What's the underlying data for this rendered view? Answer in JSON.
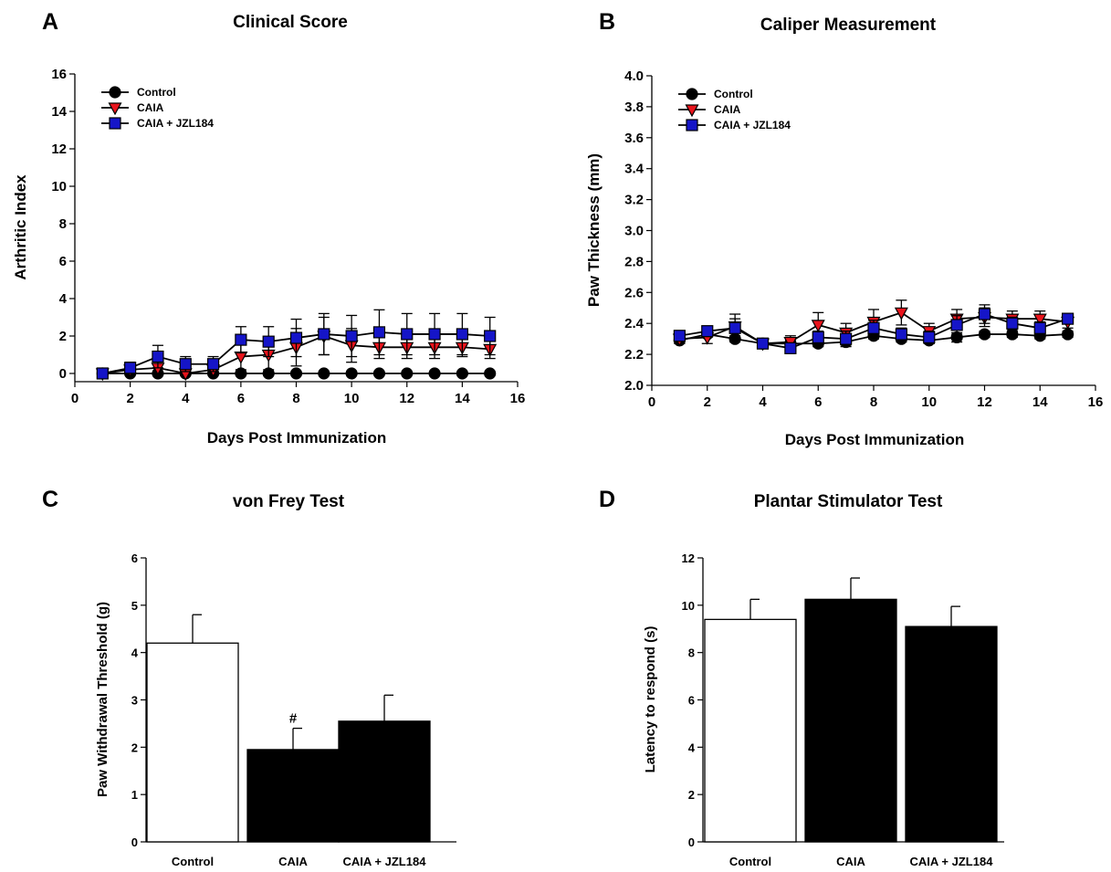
{
  "chart_data": [
    {
      "panel": "A",
      "type": "line",
      "title": "Clinical Score",
      "xlabel": "Days Post Immunization",
      "ylabel": "Arthritic Index",
      "xlim": [
        0,
        16
      ],
      "ylim": [
        0,
        16
      ],
      "xticks": [
        0,
        2,
        4,
        6,
        8,
        10,
        12,
        14,
        16
      ],
      "yticks": [
        0,
        2,
        4,
        6,
        8,
        10,
        12,
        14,
        16
      ],
      "grid": false,
      "legend_position": "top-left",
      "x": [
        1,
        2,
        3,
        4,
        5,
        6,
        7,
        8,
        9,
        10,
        11,
        12,
        13,
        14,
        15
      ],
      "series": [
        {
          "name": "Control",
          "marker": "circle",
          "color": "#000000",
          "values": [
            0,
            0,
            0,
            0,
            0,
            0,
            0,
            0,
            0,
            0,
            0,
            0,
            0,
            0,
            0
          ],
          "error": [
            0,
            0,
            0,
            0,
            0,
            0,
            0,
            0,
            0,
            0,
            0,
            0,
            0,
            0,
            0
          ]
        },
        {
          "name": "CAIA",
          "marker": "triangle-down",
          "color": "#e8141c",
          "values": [
            0,
            0.2,
            0.3,
            0,
            0.2,
            0.9,
            1.0,
            1.4,
            2.0,
            1.5,
            1.4,
            1.4,
            1.4,
            1.4,
            1.3
          ],
          "error": [
            0.2,
            0.3,
            0.4,
            0.2,
            0.3,
            0.7,
            0.8,
            1.0,
            1.0,
            0.9,
            0.6,
            0.6,
            0.6,
            0.5,
            0.5
          ]
        },
        {
          "name": "CAIA + JZL184",
          "marker": "square",
          "color": "#1515c8",
          "values": [
            0,
            0.3,
            0.9,
            0.5,
            0.5,
            1.8,
            1.7,
            1.9,
            2.1,
            2.0,
            2.2,
            2.1,
            2.1,
            2.1,
            2.0
          ],
          "error": [
            0.2,
            0.3,
            0.6,
            0.4,
            0.4,
            0.7,
            0.8,
            1.0,
            1.1,
            1.1,
            1.2,
            1.1,
            1.1,
            1.1,
            1.0
          ]
        }
      ]
    },
    {
      "panel": "B",
      "type": "line",
      "title": "Caliper Measurement",
      "xlabel": "Days Post Immunization",
      "ylabel": "Paw Thickness (mm)",
      "xlim": [
        0,
        16
      ],
      "ylim": [
        2.0,
        4.0
      ],
      "xticks": [
        0,
        2,
        4,
        6,
        8,
        10,
        12,
        14,
        16
      ],
      "yticks": [
        "2.0",
        "2.2",
        "2.4",
        "2.6",
        "2.8",
        "3.0",
        "3.2",
        "3.4",
        "3.6",
        "3.8",
        "4.0"
      ],
      "grid": false,
      "legend_position": "top-left",
      "x": [
        1,
        2,
        3,
        4,
        5,
        6,
        7,
        8,
        9,
        10,
        11,
        12,
        13,
        14,
        15
      ],
      "series": [
        {
          "name": "Control",
          "marker": "circle",
          "color": "#000000",
          "values": [
            2.29,
            2.33,
            2.3,
            2.27,
            2.27,
            2.27,
            2.28,
            2.32,
            2.3,
            2.29,
            2.31,
            2.33,
            2.33,
            2.32,
            2.33
          ],
          "error": [
            0.02,
            0.02,
            0.02,
            0.02,
            0.02,
            0.02,
            0.02,
            0.02,
            0.02,
            0.02,
            0.03,
            0.02,
            0.02,
            0.02,
            0.02
          ]
        },
        {
          "name": "CAIA",
          "marker": "triangle-down",
          "color": "#e8141c",
          "values": [
            2.3,
            2.31,
            2.38,
            2.27,
            2.28,
            2.39,
            2.34,
            2.41,
            2.47,
            2.35,
            2.43,
            2.44,
            2.43,
            2.43,
            2.41
          ],
          "error": [
            0.03,
            0.04,
            0.08,
            0.03,
            0.04,
            0.08,
            0.06,
            0.08,
            0.08,
            0.05,
            0.06,
            0.06,
            0.05,
            0.05,
            0.04
          ]
        },
        {
          "name": "CAIA + JZL184",
          "marker": "square",
          "color": "#1515c8",
          "values": [
            2.32,
            2.35,
            2.37,
            2.27,
            2.24,
            2.31,
            2.3,
            2.37,
            2.33,
            2.31,
            2.39,
            2.46,
            2.4,
            2.37,
            2.43
          ],
          "error": [
            0.03,
            0.03,
            0.06,
            0.03,
            0.03,
            0.04,
            0.05,
            0.05,
            0.04,
            0.04,
            0.06,
            0.06,
            0.04,
            0.04,
            0.03
          ]
        }
      ]
    },
    {
      "panel": "C",
      "type": "bar",
      "title": "von Frey Test",
      "xlabel": "",
      "ylabel": "Paw Withdrawal Threshold (g)",
      "ylim": [
        0,
        6
      ],
      "yticks": [
        0,
        1,
        2,
        3,
        4,
        5,
        6
      ],
      "grid": false,
      "categories": [
        "Control",
        "CAIA",
        "CAIA + JZL184"
      ],
      "values": [
        4.2,
        1.95,
        2.55
      ],
      "error": [
        0.6,
        0.45,
        0.55
      ],
      "fills": [
        "#ffffff",
        "#000000",
        "#000000"
      ],
      "annotations": [
        "",
        "#",
        ""
      ]
    },
    {
      "panel": "D",
      "type": "bar",
      "title": "Plantar Stimulator Test",
      "xlabel": "",
      "ylabel": "Latency to respond (s)",
      "ylim": [
        0,
        12
      ],
      "yticks": [
        0,
        2,
        4,
        6,
        8,
        10,
        12
      ],
      "grid": false,
      "categories": [
        "Control",
        "CAIA",
        "CAIA + JZL184"
      ],
      "values": [
        9.4,
        10.25,
        9.1
      ],
      "error": [
        0.85,
        0.9,
        0.85
      ],
      "fills": [
        "#ffffff",
        "#000000",
        "#000000"
      ],
      "annotations": [
        "",
        "",
        ""
      ]
    }
  ]
}
